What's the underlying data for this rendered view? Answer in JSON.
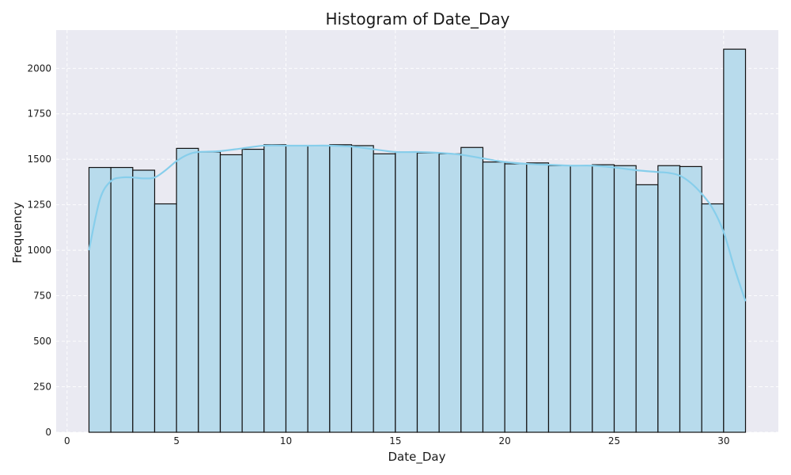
{
  "chart_data": {
    "type": "bar",
    "title": "Histogram of Date_Day",
    "xlabel": "Date_Day",
    "ylabel": "Frequency",
    "xlim": [
      -0.5,
      32.5
    ],
    "ylim": [
      0,
      2210
    ],
    "xticks": [
      0,
      5,
      10,
      15,
      20,
      25,
      30
    ],
    "yticks": [
      0,
      250,
      500,
      750,
      1000,
      1250,
      1500,
      1750,
      2000
    ],
    "grid": true,
    "bins": [
      {
        "start": 1,
        "end": 2,
        "value": 1455
      },
      {
        "start": 2,
        "end": 3,
        "value": 1455
      },
      {
        "start": 3,
        "end": 4,
        "value": 1440
      },
      {
        "start": 4,
        "end": 5,
        "value": 1255
      },
      {
        "start": 5,
        "end": 6,
        "value": 1560
      },
      {
        "start": 6,
        "end": 7,
        "value": 1540
      },
      {
        "start": 7,
        "end": 8,
        "value": 1525
      },
      {
        "start": 8,
        "end": 9,
        "value": 1555
      },
      {
        "start": 9,
        "end": 10,
        "value": 1580
      },
      {
        "start": 10,
        "end": 11,
        "value": 1575
      },
      {
        "start": 11,
        "end": 12,
        "value": 1575
      },
      {
        "start": 12,
        "end": 13,
        "value": 1580
      },
      {
        "start": 13,
        "end": 14,
        "value": 1575
      },
      {
        "start": 14,
        "end": 15,
        "value": 1530
      },
      {
        "start": 15,
        "end": 16,
        "value": 1540
      },
      {
        "start": 16,
        "end": 17,
        "value": 1535
      },
      {
        "start": 17,
        "end": 18,
        "value": 1530
      },
      {
        "start": 18,
        "end": 19,
        "value": 1565
      },
      {
        "start": 19,
        "end": 20,
        "value": 1485
      },
      {
        "start": 20,
        "end": 21,
        "value": 1475
      },
      {
        "start": 21,
        "end": 22,
        "value": 1480
      },
      {
        "start": 22,
        "end": 23,
        "value": 1465
      },
      {
        "start": 23,
        "end": 24,
        "value": 1465
      },
      {
        "start": 24,
        "end": 25,
        "value": 1470
      },
      {
        "start": 25,
        "end": 26,
        "value": 1465
      },
      {
        "start": 26,
        "end": 27,
        "value": 1360
      },
      {
        "start": 27,
        "end": 28,
        "value": 1465
      },
      {
        "start": 28,
        "end": 29,
        "value": 1460
      },
      {
        "start": 29,
        "end": 30,
        "value": 1255
      },
      {
        "start": 30,
        "end": 31,
        "value": 2105
      }
    ],
    "kde": {
      "x": [
        1,
        1.5,
        2,
        2.5,
        3,
        3.5,
        4,
        4.5,
        5,
        5.5,
        6,
        7,
        8,
        9,
        10,
        11,
        12,
        13,
        14,
        15,
        16,
        17,
        18,
        19,
        20,
        21,
        22,
        23,
        24,
        25,
        26,
        27,
        27.5,
        28,
        28.5,
        29,
        29.5,
        30,
        30.5,
        31
      ],
      "y": [
        1000,
        1280,
        1380,
        1400,
        1400,
        1395,
        1400,
        1440,
        1490,
        1525,
        1540,
        1545,
        1560,
        1575,
        1575,
        1575,
        1575,
        1570,
        1555,
        1540,
        1540,
        1535,
        1525,
        1505,
        1485,
        1475,
        1470,
        1465,
        1465,
        1455,
        1440,
        1430,
        1425,
        1410,
        1370,
        1310,
        1230,
        1100,
        900,
        720
      ]
    },
    "colors": {
      "bar_fill": "#b8dbec",
      "bar_edge": "#111111",
      "kde_line": "#87ceeb",
      "plot_background": "#eaeaf2",
      "grid": "#ffffff"
    }
  }
}
